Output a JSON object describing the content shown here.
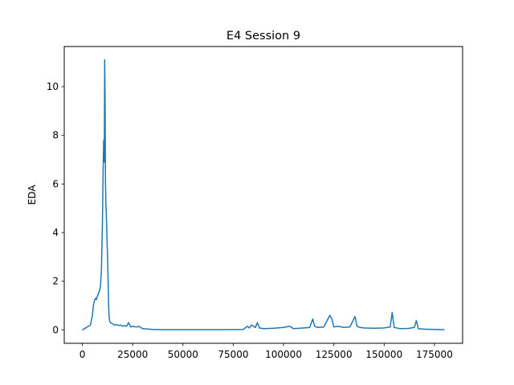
{
  "chart_data": {
    "type": "line",
    "title": "E4 Session 9",
    "xlabel": "",
    "ylabel": "EDA",
    "xlim": [
      -9000,
      189000
    ],
    "ylim": [
      -0.55,
      11.65
    ],
    "xticks": [
      0,
      25000,
      50000,
      75000,
      100000,
      125000,
      150000,
      175000
    ],
    "yticks": [
      0,
      2,
      4,
      6,
      8,
      10
    ],
    "grid": false,
    "legend": "none",
    "colors": {
      "series": "#1f77b4",
      "axes": "#000000",
      "background": "#ffffff"
    },
    "series": [
      {
        "x": [
          0,
          1000,
          2000,
          3000,
          4000,
          5000,
          5500,
          6000,
          6500,
          7000,
          7500,
          8000,
          8500,
          9000,
          9500,
          10000,
          10300,
          10600,
          10900,
          11100,
          11300,
          11500,
          11700,
          11900,
          12100,
          12300,
          12500,
          12700,
          12900,
          13100,
          13300,
          13600,
          14000,
          15000,
          16000,
          17000,
          18000,
          19000,
          20000,
          21000,
          22000,
          23000,
          24000,
          25000,
          26000,
          27000,
          28000,
          29000,
          30000,
          35000,
          40000,
          50000,
          60000,
          70000,
          80000,
          82000,
          83000,
          84000,
          86000,
          87000,
          88000,
          90000,
          95000,
          100000,
          103000,
          105000,
          110000,
          113000,
          114500,
          115500,
          117000,
          120000,
          123000,
          124000,
          125000,
          127000,
          130000,
          133000,
          135500,
          136500,
          138000,
          140000,
          145000,
          150000,
          153000,
          154000,
          155000,
          158000,
          162000,
          165000,
          166000,
          167000,
          170000,
          175000,
          180000
        ],
        "y": [
          0.0,
          0.05,
          0.1,
          0.15,
          0.2,
          0.6,
          1.0,
          1.2,
          1.3,
          1.25,
          1.4,
          1.5,
          1.6,
          1.8,
          2.5,
          4.5,
          6.5,
          7.8,
          6.9,
          11.1,
          9.5,
          6.0,
          5.2,
          4.8,
          4.2,
          3.6,
          3.1,
          2.4,
          1.6,
          0.9,
          0.55,
          0.35,
          0.3,
          0.25,
          0.2,
          0.22,
          0.18,
          0.2,
          0.15,
          0.17,
          0.15,
          0.3,
          0.12,
          0.15,
          0.13,
          0.12,
          0.15,
          0.1,
          0.05,
          0.02,
          0.01,
          0.01,
          0.01,
          0.01,
          0.02,
          0.15,
          0.08,
          0.2,
          0.1,
          0.3,
          0.08,
          0.05,
          0.07,
          0.1,
          0.15,
          0.05,
          0.08,
          0.1,
          0.45,
          0.15,
          0.1,
          0.12,
          0.6,
          0.45,
          0.12,
          0.15,
          0.1,
          0.12,
          0.55,
          0.15,
          0.1,
          0.08,
          0.07,
          0.08,
          0.12,
          0.72,
          0.1,
          0.05,
          0.06,
          0.1,
          0.38,
          0.05,
          0.03,
          0.02,
          0.01
        ]
      }
    ]
  }
}
